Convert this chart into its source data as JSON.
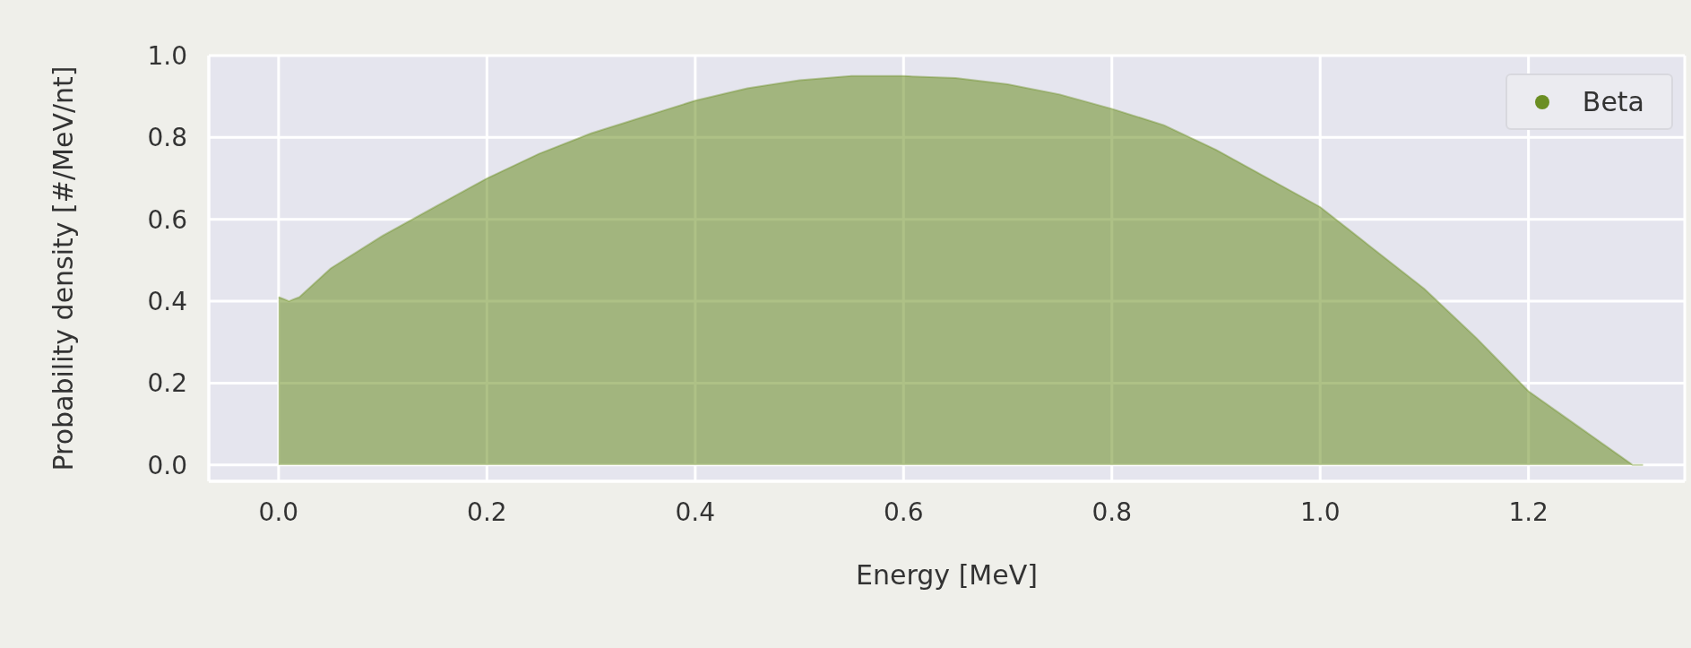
{
  "chart_data": {
    "type": "area",
    "xlabel": "Energy [MeV]",
    "ylabel": "Probability density [#/MeV/nt]",
    "x": [
      0,
      0.01,
      0.02,
      0.05,
      0.1,
      0.15,
      0.2,
      0.25,
      0.3,
      0.35,
      0.4,
      0.45,
      0.5,
      0.55,
      0.6,
      0.65,
      0.7,
      0.75,
      0.8,
      0.85,
      0.9,
      0.95,
      1.0,
      1.05,
      1.1,
      1.15,
      1.2,
      1.25,
      1.3,
      1.31
    ],
    "series": [
      {
        "name": "Beta",
        "color": "#6b8e23",
        "values": [
          0.41,
          0.4,
          0.41,
          0.48,
          0.56,
          0.63,
          0.7,
          0.76,
          0.81,
          0.85,
          0.89,
          0.92,
          0.94,
          0.95,
          0.95,
          0.945,
          0.93,
          0.905,
          0.87,
          0.83,
          0.77,
          0.7,
          0.63,
          0.53,
          0.43,
          0.31,
          0.18,
          0.09,
          0.0,
          0.0
        ]
      }
    ],
    "xlim": [
      -0.067,
      1.35
    ],
    "xticks": [
      {
        "value": 0,
        "label": "0.0"
      },
      {
        "value": 0.2,
        "label": "0.2"
      },
      {
        "value": 0.4,
        "label": "0.4"
      },
      {
        "value": 0.6,
        "label": "0.6"
      },
      {
        "value": 0.8,
        "label": "0.8"
      },
      {
        "value": 1.0,
        "label": "1.0"
      },
      {
        "value": 1.2,
        "label": "1.2"
      }
    ],
    "ylim": [
      -0.04,
      1.0
    ],
    "yticks": [
      {
        "value": 0,
        "label": "0.0"
      },
      {
        "value": 0.2,
        "label": "0.2"
      },
      {
        "value": 0.4,
        "label": "0.4"
      },
      {
        "value": 0.6,
        "label": "0.6"
      },
      {
        "value": 0.8,
        "label": "0.8"
      },
      {
        "value": 1.0,
        "label": "1.0"
      }
    ],
    "grid": true,
    "legend": "top right"
  }
}
